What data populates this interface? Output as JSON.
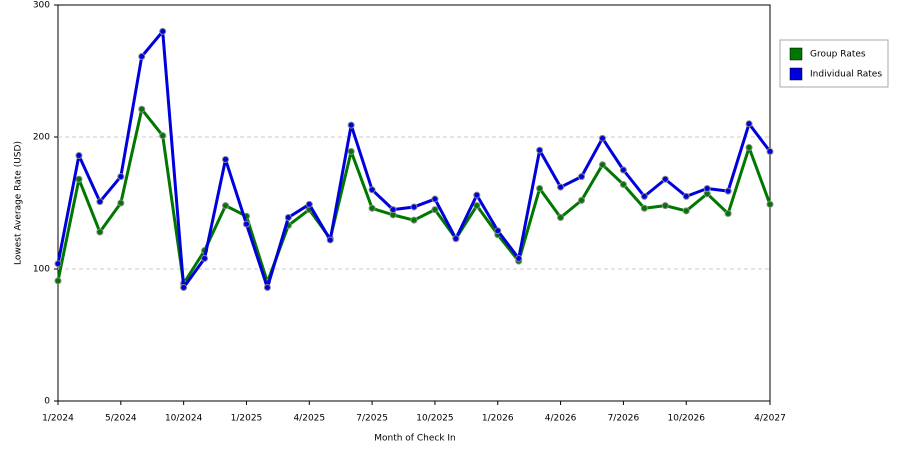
{
  "chart_data": {
    "type": "line",
    "x_label": "Month of Check In",
    "y_label": "Lowest Average Rate (USD)",
    "categories": [
      "1/2024",
      null,
      null,
      "5/2024",
      null,
      null,
      "10/2024",
      null,
      null,
      "1/2025",
      null,
      null,
      "4/2025",
      null,
      null,
      "7/2025",
      null,
      null,
      "10/2025",
      null,
      null,
      "1/2026",
      null,
      null,
      "4/2026",
      null,
      null,
      "7/2026",
      null,
      null,
      "10/2026",
      null,
      null,
      null,
      "4/2027"
    ],
    "series": [
      {
        "name": "Group Rates",
        "color": "#007700",
        "values": [
          91,
          168,
          128,
          150,
          221,
          201,
          89,
          114,
          148,
          140,
          90,
          133,
          145,
          123,
          189,
          146,
          141,
          137,
          145,
          123,
          148,
          126,
          106,
          161,
          139,
          152,
          179,
          164,
          146,
          148,
          144,
          157,
          142,
          192,
          149
        ]
      },
      {
        "name": "Individual Rates",
        "color": "#0000dd",
        "values": [
          104,
          186,
          151,
          170,
          261,
          280,
          86,
          108,
          183,
          134,
          86,
          139,
          149,
          122,
          209,
          160,
          145,
          147,
          153,
          123,
          156,
          129,
          108,
          190,
          162,
          170,
          199,
          175,
          155,
          168,
          155,
          161,
          159,
          210,
          189
        ]
      }
    ],
    "ylim": [
      0,
      300
    ],
    "yticks": [
      0,
      100,
      200,
      300
    ],
    "grid": true,
    "legend": "top-right"
  }
}
